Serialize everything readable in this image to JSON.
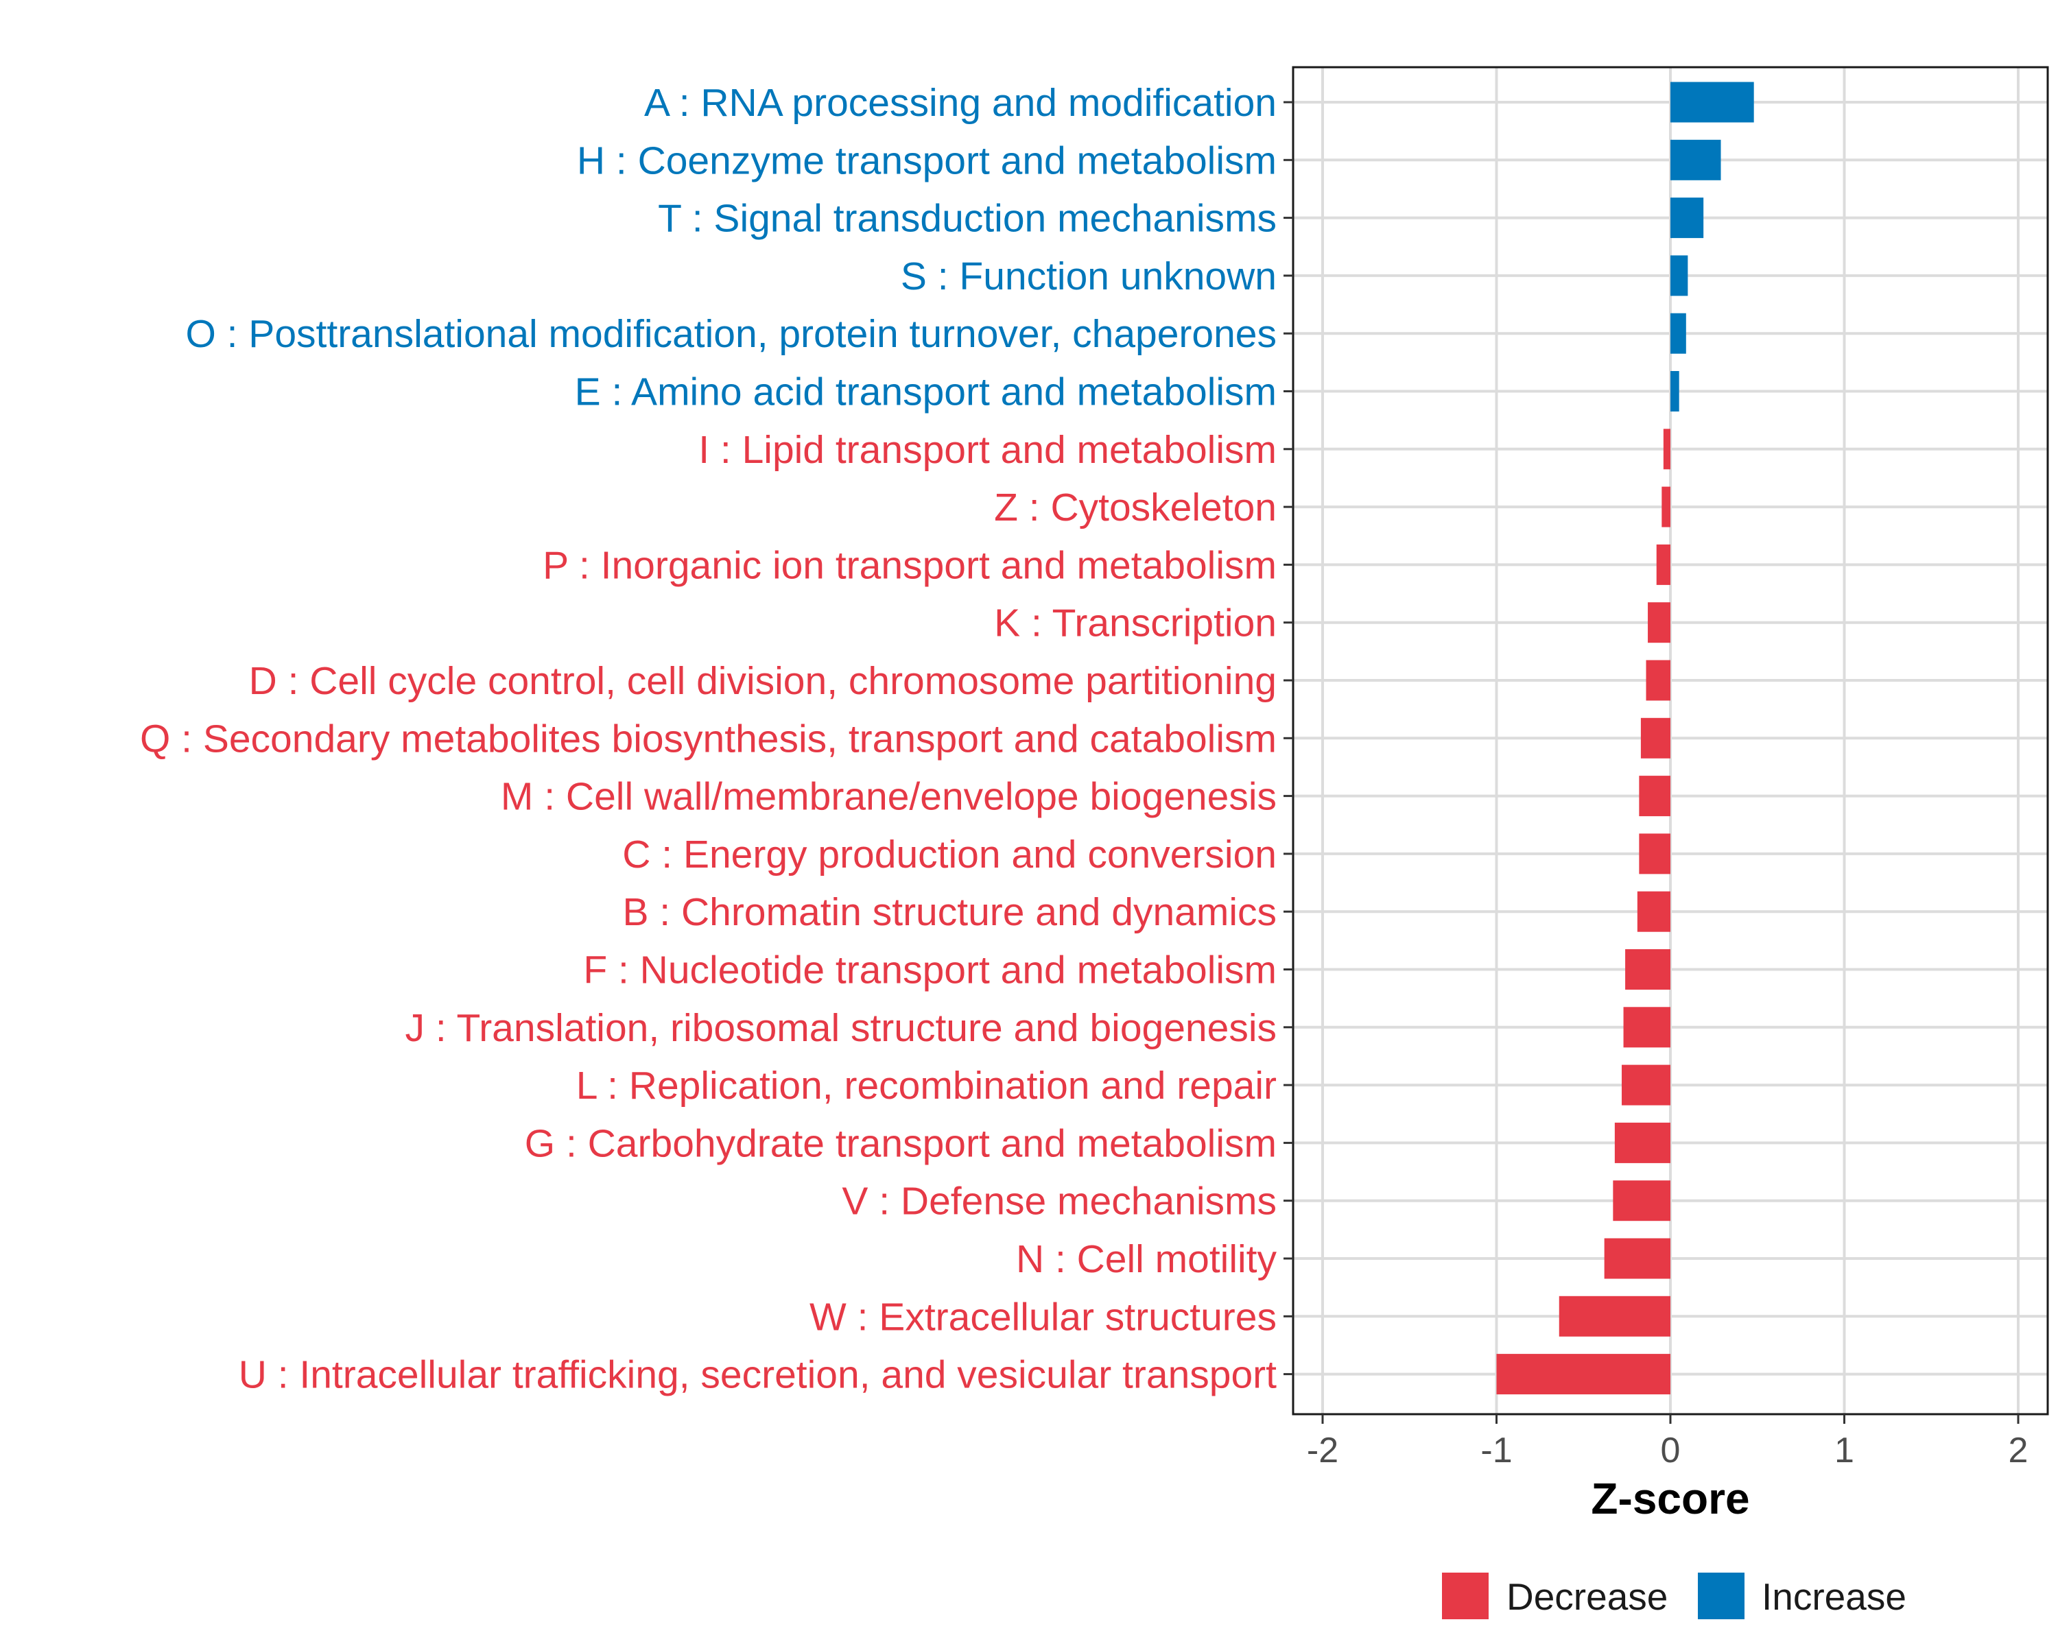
{
  "chart_data": {
    "type": "bar",
    "orientation": "horizontal",
    "xlabel": "Z-score",
    "ylabel": "",
    "xlim": [
      -2.2,
      2.2
    ],
    "xticks": [
      -2,
      -1,
      0,
      1,
      2
    ],
    "xtick_labels": [
      "-2",
      "-1",
      "0",
      "1",
      "2"
    ],
    "grid": true,
    "legend_position": "bottom",
    "colors": {
      "Decrease": "#e63946",
      "Increase": "#0077bb"
    },
    "legend": [
      {
        "label": "Decrease",
        "color": "#e63946"
      },
      {
        "label": "Increase",
        "color": "#0077bb"
      }
    ],
    "bars": [
      {
        "category": "A : RNA processing and modification",
        "value": 0.48,
        "group": "Increase"
      },
      {
        "category": "H : Coenzyme transport and metabolism",
        "value": 0.29,
        "group": "Increase"
      },
      {
        "category": "T : Signal transduction mechanisms",
        "value": 0.19,
        "group": "Increase"
      },
      {
        "category": "S : Function unknown",
        "value": 0.1,
        "group": "Increase"
      },
      {
        "category": "O : Posttranslational modification, protein turnover, chaperones",
        "value": 0.09,
        "group": "Increase"
      },
      {
        "category": "E : Amino acid transport and metabolism",
        "value": 0.05,
        "group": "Increase"
      },
      {
        "category": "I : Lipid transport and metabolism",
        "value": -0.04,
        "group": "Decrease"
      },
      {
        "category": "Z : Cytoskeleton",
        "value": -0.05,
        "group": "Decrease"
      },
      {
        "category": "P : Inorganic ion transport and metabolism",
        "value": -0.08,
        "group": "Decrease"
      },
      {
        "category": "K : Transcription",
        "value": -0.13,
        "group": "Decrease"
      },
      {
        "category": "D : Cell cycle control, cell division, chromosome partitioning",
        "value": -0.14,
        "group": "Decrease"
      },
      {
        "category": "Q : Secondary metabolites biosynthesis, transport and catabolism",
        "value": -0.17,
        "group": "Decrease"
      },
      {
        "category": "M : Cell wall/membrane/envelope biogenesis",
        "value": -0.18,
        "group": "Decrease"
      },
      {
        "category": "C : Energy production and conversion",
        "value": -0.18,
        "group": "Decrease"
      },
      {
        "category": "B : Chromatin structure and dynamics",
        "value": -0.19,
        "group": "Decrease"
      },
      {
        "category": "F : Nucleotide transport and metabolism",
        "value": -0.26,
        "group": "Decrease"
      },
      {
        "category": "J : Translation, ribosomal structure and biogenesis",
        "value": -0.27,
        "group": "Decrease"
      },
      {
        "category": "L : Replication, recombination and repair",
        "value": -0.28,
        "group": "Decrease"
      },
      {
        "category": "G : Carbohydrate transport and metabolism",
        "value": -0.32,
        "group": "Decrease"
      },
      {
        "category": "V : Defense mechanisms",
        "value": -0.33,
        "group": "Decrease"
      },
      {
        "category": "N : Cell motility",
        "value": -0.38,
        "group": "Decrease"
      },
      {
        "category": "W : Extracellular structures",
        "value": -0.64,
        "group": "Decrease"
      },
      {
        "category": "U : Intracellular trafficking, secretion, and vesicular transport",
        "value": -1.0,
        "group": "Decrease"
      }
    ]
  }
}
